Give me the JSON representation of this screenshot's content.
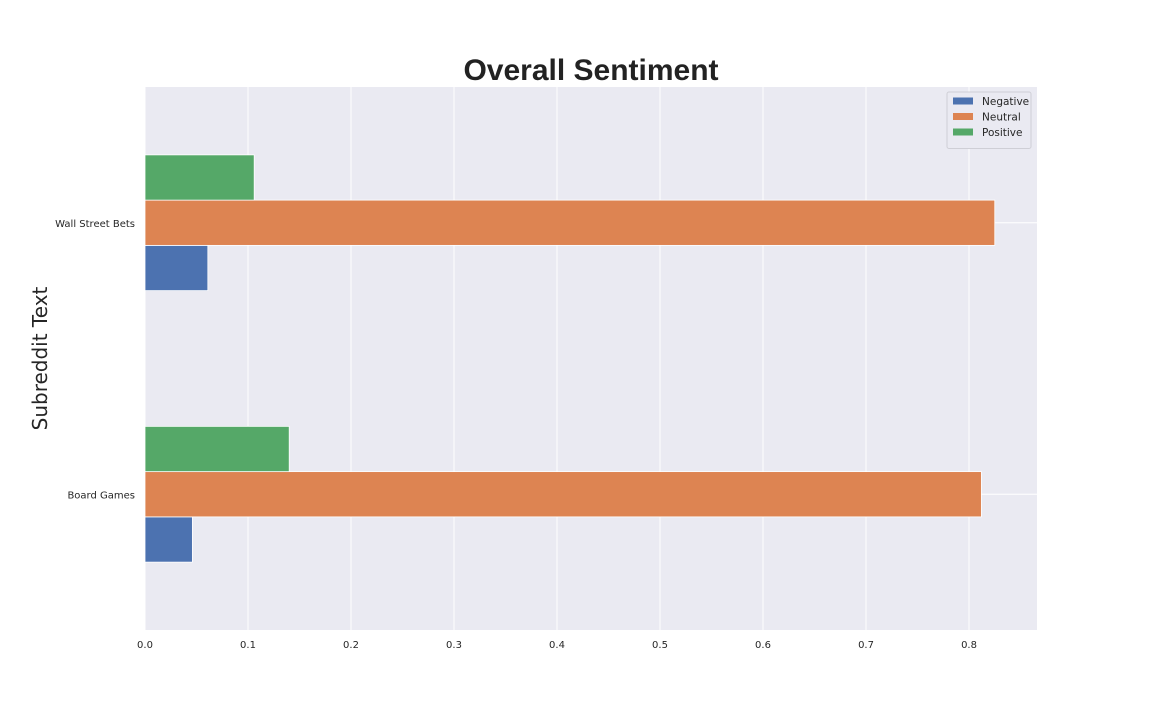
{
  "chart_data": {
    "type": "bar",
    "orientation": "horizontal",
    "title": "Overall Sentiment",
    "xlabel": "",
    "ylabel": "Subreddit Text",
    "categories": [
      "Board Games",
      "Wall Street Bets"
    ],
    "series": [
      {
        "name": "Negative",
        "color": "#4c72b0",
        "values": [
          0.046,
          0.061
        ]
      },
      {
        "name": "Neutral",
        "color": "#dd8452",
        "values": [
          0.812,
          0.825
        ]
      },
      {
        "name": "Positive",
        "color": "#55a868",
        "values": [
          0.14,
          0.106
        ]
      }
    ],
    "xlim": [
      0,
      0.866
    ],
    "xticks": [
      "0.0",
      "0.1",
      "0.2",
      "0.3",
      "0.4",
      "0.5",
      "0.6",
      "0.7",
      "0.8"
    ],
    "grid": true,
    "legend_position": "upper right",
    "background_color": "#eaeaf2"
  }
}
